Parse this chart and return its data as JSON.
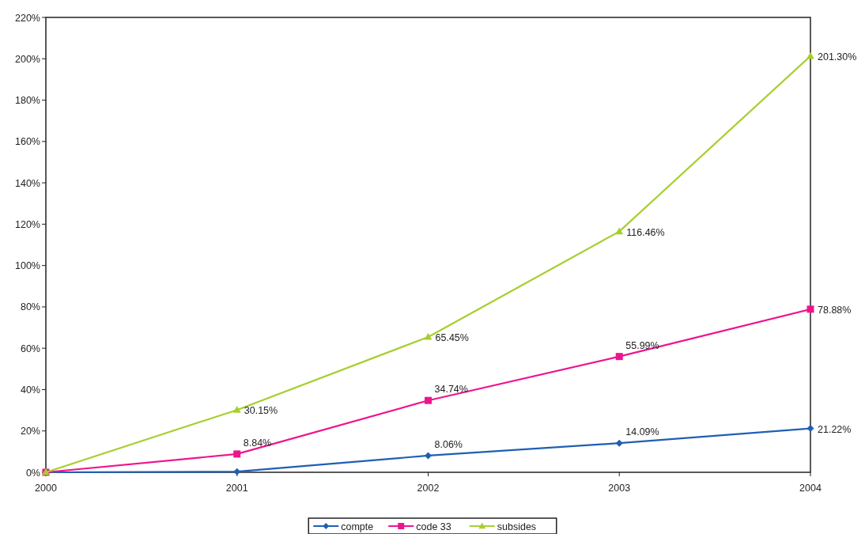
{
  "chart_data": {
    "type": "line",
    "categories": [
      "2000",
      "2001",
      "2002",
      "2003",
      "2004"
    ],
    "series": [
      {
        "name": "compte",
        "color": "#1f5fb4",
        "marker": "diamond",
        "values": [
          0,
          0.3,
          8.06,
          14.09,
          21.22
        ],
        "value_labels": [
          null,
          null,
          "8.06%",
          "14.09%",
          "21.22%"
        ]
      },
      {
        "name": "code 33",
        "color": "#ee1490",
        "marker": "square",
        "values": [
          0,
          8.84,
          34.74,
          55.99,
          78.88
        ],
        "value_labels": [
          null,
          "8.84%",
          "34.74%",
          "55.99%",
          "78.88%"
        ]
      },
      {
        "name": "subsides",
        "color": "#a6cf2e",
        "marker": "triangle",
        "values": [
          0,
          30.15,
          65.45,
          116.46,
          201.3
        ],
        "value_labels": [
          null,
          "30.15%",
          "65.45%",
          "116.46%",
          "201.30%"
        ]
      }
    ],
    "ylim": [
      0,
      220
    ],
    "yticks": [
      {
        "value": 0,
        "label": "0%"
      },
      {
        "value": 20,
        "label": "20%"
      },
      {
        "value": 40,
        "label": "40%"
      },
      {
        "value": 60,
        "label": "60%"
      },
      {
        "value": 80,
        "label": "80%"
      },
      {
        "value": 100,
        "label": "100%"
      },
      {
        "value": 120,
        "label": "120%"
      },
      {
        "value": 140,
        "label": "140%"
      },
      {
        "value": 160,
        "label": "160%"
      },
      {
        "value": 180,
        "label": "180%"
      },
      {
        "value": 200,
        "label": "200%"
      },
      {
        "value": 220,
        "label": "220%"
      }
    ],
    "legend": "bottom",
    "line_style": "solid"
  }
}
